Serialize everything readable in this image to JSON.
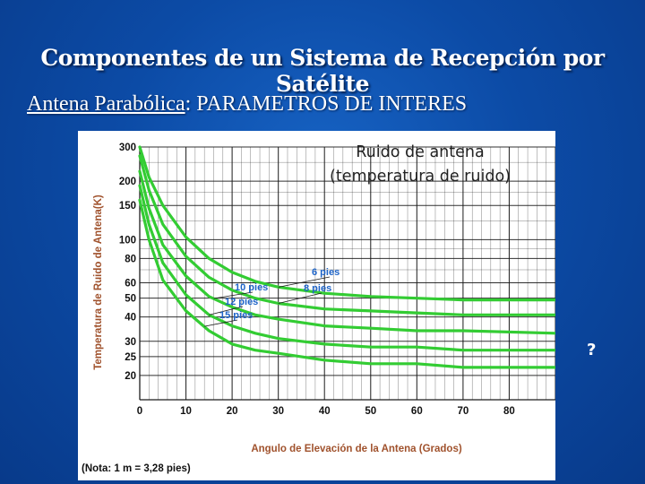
{
  "slide": {
    "title": "Componentes de un Sistema de Recepción por Satélite",
    "subtitle_underlined": "Antena Parabólica",
    "subtitle_rest": ": PARAMETROS DE INTERES",
    "side_mark": "?"
  },
  "colors": {
    "background": "#0c4ba6",
    "curve": "#33cc33",
    "grid": "#1a1a1a",
    "axis_text": "#a0522d",
    "annotation": "#1e64c8"
  },
  "chart_data": {
    "type": "line",
    "ylabel": "Temperatura de Ruido de Antena(K)",
    "xlabel": "Angulo de Elevación de la Antena (Grados)",
    "note": "(Nota: 1 m = 3,28 pies)",
    "annotation_lines": [
      "Ruido de antena",
      "(temperatura de ruido)"
    ],
    "x_ticks": [
      0,
      10,
      20,
      30,
      40,
      50,
      60,
      70,
      80
    ],
    "y_ticks": [
      20,
      25,
      30,
      40,
      50,
      60,
      80,
      100,
      150,
      200,
      300
    ],
    "xlim": [
      0,
      90
    ],
    "ylim": [
      15,
      300
    ],
    "series": [
      {
        "name": "6 pies",
        "x": [
          0,
          2,
          5,
          10,
          15,
          20,
          25,
          30,
          40,
          50,
          60,
          70,
          90
        ],
        "y": [
          300,
          210,
          150,
          103,
          80,
          68,
          61,
          57,
          53,
          51,
          50,
          49,
          49
        ]
      },
      {
        "name": "8 pies",
        "x": [
          0,
          2,
          5,
          10,
          15,
          20,
          25,
          30,
          40,
          50,
          60,
          70,
          90
        ],
        "y": [
          270,
          180,
          120,
          82,
          64,
          55,
          50,
          47,
          44,
          43,
          42,
          41,
          41
        ]
      },
      {
        "name": "10 pies",
        "x": [
          0,
          2,
          5,
          10,
          15,
          20,
          25,
          30,
          40,
          50,
          60,
          70,
          90
        ],
        "y": [
          225,
          145,
          94,
          65,
          51,
          45,
          41,
          39,
          36,
          35,
          34,
          34,
          33
        ]
      },
      {
        "name": "12 pies",
        "x": [
          0,
          2,
          5,
          10,
          15,
          20,
          25,
          30,
          40,
          50,
          60,
          70,
          90
        ],
        "y": [
          190,
          120,
          76,
          52,
          41,
          36,
          33,
          31,
          29,
          28,
          28,
          27,
          27
        ]
      },
      {
        "name": "15 pies",
        "x": [
          0,
          2,
          5,
          10,
          15,
          20,
          25,
          30,
          40,
          50,
          60,
          70,
          90
        ],
        "y": [
          160,
          100,
          62,
          43,
          34,
          29,
          27,
          26,
          24,
          23,
          23,
          22,
          22
        ]
      }
    ]
  }
}
